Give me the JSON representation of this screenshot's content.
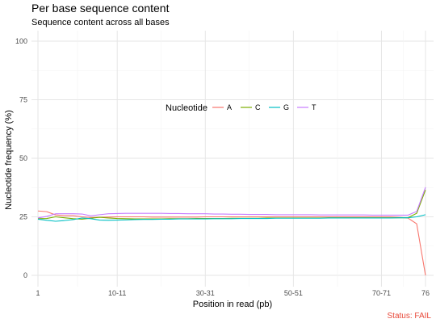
{
  "chart_data": {
    "type": "line",
    "title": "Per base sequence content",
    "subtitle": "Sequence content across all bases",
    "xlabel": "Position in read (pb)",
    "ylabel": "Nucleotide frequency (%)",
    "x_ticks": [
      "1",
      "10-11",
      "30-31",
      "50-51",
      "70-71",
      "76"
    ],
    "y_ticks": [
      0,
      25,
      50,
      75,
      100
    ],
    "ylim": [
      0,
      100
    ],
    "legend": {
      "title": "Nucleotide",
      "placement": "top-center"
    },
    "grid": true,
    "x": [
      "1",
      "2",
      "3",
      "4",
      "5",
      "6",
      "7",
      "8",
      "9",
      "10-11",
      "12-13",
      "14-15",
      "16-17",
      "18-19",
      "20-21",
      "22-23",
      "24-25",
      "26-27",
      "28-29",
      "30-31",
      "32-33",
      "34-35",
      "36-37",
      "38-39",
      "40-41",
      "42-43",
      "44-45",
      "46-47",
      "48-49",
      "50-51",
      "52-53",
      "54-55",
      "56-57",
      "58-59",
      "60-61",
      "62-63",
      "64-65",
      "66-67",
      "68-69",
      "70-71",
      "72",
      "73",
      "74",
      "75",
      "76"
    ],
    "series": [
      {
        "name": "A",
        "color": "#F8766D",
        "values": [
          27.5,
          27.2,
          25.8,
          25.5,
          25.5,
          25.0,
          24.7,
          24.8,
          24.9,
          25.0,
          25.0,
          25.0,
          25.0,
          24.9,
          24.9,
          24.9,
          24.9,
          24.9,
          24.9,
          25.0,
          25.0,
          25.0,
          25.0,
          25.0,
          25.0,
          25.0,
          25.0,
          25.0,
          25.0,
          25.0,
          25.0,
          25.0,
          25.0,
          25.0,
          25.0,
          25.0,
          25.0,
          25.0,
          25.0,
          25.0,
          25.0,
          24.8,
          24.5,
          22.0,
          0.0
        ]
      },
      {
        "name": "C",
        "color": "#7CAE00",
        "values": [
          24.2,
          24.3,
          25.0,
          24.6,
          24.2,
          24.0,
          24.4,
          24.8,
          24.5,
          24.3,
          24.2,
          24.1,
          24.1,
          24.1,
          24.1,
          24.2,
          24.2,
          24.2,
          24.3,
          24.3,
          24.3,
          24.3,
          24.4,
          24.4,
          24.4,
          24.4,
          24.5,
          24.5,
          24.5,
          24.5,
          24.5,
          24.5,
          24.5,
          24.6,
          24.6,
          24.6,
          24.6,
          24.6,
          24.6,
          24.6,
          24.6,
          24.6,
          24.6,
          26.5,
          36.5
        ]
      },
      {
        "name": "G",
        "color": "#00BFC4",
        "values": [
          24.0,
          23.5,
          23.1,
          23.4,
          23.8,
          24.5,
          24.2,
          23.6,
          23.5,
          23.6,
          23.7,
          23.8,
          23.9,
          23.9,
          24.0,
          24.0,
          24.1,
          24.1,
          24.1,
          24.1,
          24.2,
          24.2,
          24.2,
          24.3,
          24.3,
          24.3,
          24.3,
          24.4,
          24.4,
          24.4,
          24.4,
          24.4,
          24.4,
          24.5,
          24.5,
          24.5,
          24.5,
          24.5,
          24.5,
          24.5,
          24.5,
          24.6,
          24.6,
          25.0,
          25.9
        ]
      },
      {
        "name": "T",
        "color": "#C77CFF",
        "values": [
          24.5,
          25.2,
          26.3,
          26.3,
          26.3,
          26.2,
          25.4,
          25.9,
          26.3,
          26.4,
          26.5,
          26.5,
          26.5,
          26.5,
          26.5,
          26.4,
          26.4,
          26.3,
          26.3,
          26.3,
          26.2,
          26.2,
          26.1,
          26.1,
          26.0,
          26.0,
          26.0,
          25.9,
          25.9,
          25.9,
          25.9,
          25.9,
          25.8,
          25.8,
          25.8,
          25.8,
          25.8,
          25.8,
          25.7,
          25.7,
          25.7,
          25.7,
          25.7,
          27.3,
          37.6
        ]
      }
    ]
  },
  "status": {
    "text": "Status: FAIL",
    "color": "#E8493A"
  }
}
